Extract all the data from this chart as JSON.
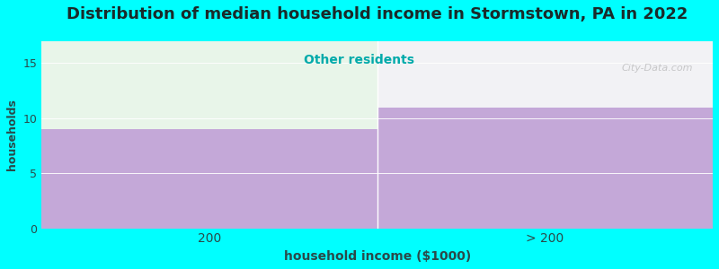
{
  "title": "Distribution of median household income in Stormstown, PA in 2022",
  "subtitle": "Other residents",
  "xlabel": "household income ($1000)",
  "ylabel": "households",
  "categories": [
    "200",
    "> 200"
  ],
  "values": [
    9,
    11
  ],
  "bar_color": "#C4A8D8",
  "bg_color": "#00FFFF",
  "plot_bg_left": "#E8F5E9",
  "plot_bg_right": "#F2F2F5",
  "ylim": [
    0,
    17
  ],
  "yticks": [
    0,
    5,
    10,
    15
  ],
  "title_fontsize": 13,
  "subtitle_fontsize": 10,
  "title_color": "#1a2a2a",
  "subtitle_color": "#00AAAA",
  "xlabel_fontsize": 10,
  "ylabel_fontsize": 9,
  "label_color": "#2a4a4a",
  "watermark": "City-Data.com"
}
